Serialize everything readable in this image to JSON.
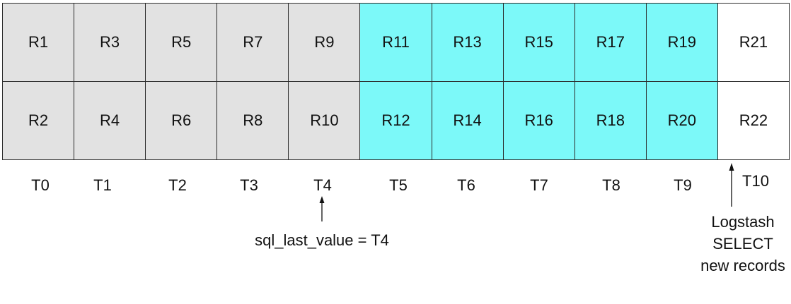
{
  "colors": {
    "processed": "#e2e2e2",
    "pending": "#7cf9f9",
    "new": "#ffffff",
    "border": "#2b2b2b"
  },
  "columns": [
    {
      "time": "T0",
      "top": "R1",
      "bottom": "R2",
      "state": "processed"
    },
    {
      "time": "T1",
      "top": "R3",
      "bottom": "R4",
      "state": "processed"
    },
    {
      "time": "T2",
      "top": "R5",
      "bottom": "R6",
      "state": "processed"
    },
    {
      "time": "T3",
      "top": "R7",
      "bottom": "R8",
      "state": "processed"
    },
    {
      "time": "T4",
      "top": "R9",
      "bottom": "R10",
      "state": "processed"
    },
    {
      "time": "T5",
      "top": "R11",
      "bottom": "R12",
      "state": "pending"
    },
    {
      "time": "T6",
      "top": "R13",
      "bottom": "R14",
      "state": "pending"
    },
    {
      "time": "T7",
      "top": "R15",
      "bottom": "R16",
      "state": "pending"
    },
    {
      "time": "T8",
      "top": "R17",
      "bottom": "R18",
      "state": "pending"
    },
    {
      "time": "T9",
      "top": "R19",
      "bottom": "R20",
      "state": "pending"
    },
    {
      "time": "T10",
      "top": "R21",
      "bottom": "R22",
      "state": "new"
    }
  ],
  "annotations": {
    "last_value": "sql_last_value = T4",
    "logstash_lines": [
      "Logstash",
      "SELECT",
      "new records"
    ]
  }
}
